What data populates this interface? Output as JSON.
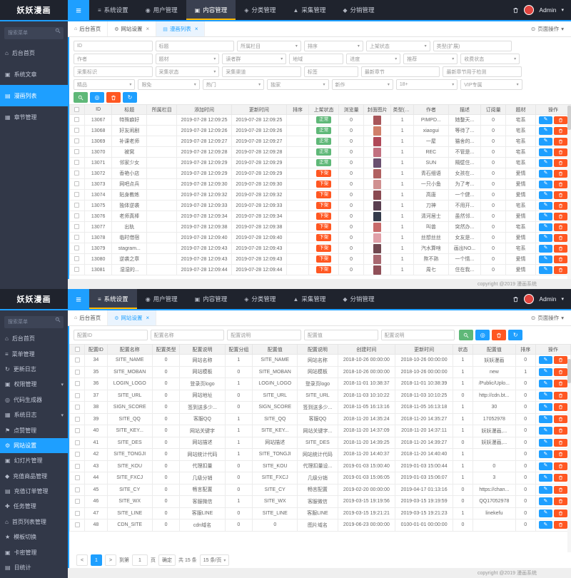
{
  "footer_text": "copyright @2019 漫画系统",
  "icons": {
    "hamburger": "≡",
    "caret": "▾",
    "close": "×",
    "circle_dot": "⊙",
    "home": "⌂",
    "gear": "⚙",
    "list": "▤",
    "grid": "▦",
    "doc": "▣",
    "diamond": "◆",
    "diamond_open": "◈",
    "triangle": "▲",
    "dot": "◉",
    "star": "★",
    "plus": "✚",
    "refresh": "↻",
    "pencil": "✎",
    "target": "◎",
    "menu": "≡",
    "flag": "⚑",
    "calendar": "▦",
    "card": "▣",
    "chart": "▤",
    "slide": "▣",
    "goods": "◆",
    "order": "▤",
    "task": "✚"
  },
  "p1": {
    "brand": "妖妖漫画",
    "nav": {
      "active": 2,
      "admin": "Admin",
      "items": [
        {
          "label": "系统设置",
          "icon": "menu"
        },
        {
          "label": "用户管理",
          "icon": "dot"
        },
        {
          "label": "内容管理",
          "icon": "doc"
        },
        {
          "label": "分类管理",
          "icon": "diamond_open"
        },
        {
          "label": "采集管理",
          "icon": "triangle"
        },
        {
          "label": "分销管理",
          "icon": "diamond"
        }
      ]
    },
    "sidebar": {
      "search_placeholder": "搜索菜单",
      "items": [
        {
          "label": "后台首页",
          "icon": "home"
        },
        {
          "label": "系统文章",
          "icon": "doc"
        },
        {
          "label": "漫画列表",
          "icon": "list",
          "active": true
        },
        {
          "label": "章节管理",
          "icon": "grid"
        }
      ]
    },
    "tabs": [
      {
        "label": "后台首页",
        "icon": "home"
      },
      {
        "label": "网站设置",
        "icon": "gear",
        "closable": true
      },
      {
        "label": "漫画列表",
        "icon": "list",
        "closable": true,
        "active": true
      }
    ],
    "page_action": "页面操作",
    "filters": [
      [
        {
          "label": "ID",
          "type": "input",
          "w": 16
        },
        {
          "label": "标题",
          "type": "input",
          "w": 16
        },
        {
          "label": "所属栏目",
          "type": "select",
          "w": 13
        },
        {
          "label": "排序",
          "type": "select",
          "w": 12
        },
        {
          "label": "上架状态",
          "type": "select",
          "w": 13
        },
        {
          "label": "类型(扩展)",
          "type": "input",
          "w": 16
        }
      ],
      [
        {
          "label": "作者",
          "type": "input",
          "w": 16
        },
        {
          "label": "题材",
          "type": "select",
          "w": 13
        },
        {
          "label": "读者群",
          "type": "select",
          "w": 13
        },
        {
          "label": "地域",
          "type": "input",
          "w": 11
        },
        {
          "label": "进度",
          "type": "select",
          "w": 11
        },
        {
          "label": "推荐",
          "type": "select",
          "w": 11
        },
        {
          "label": "收费状态",
          "type": "select",
          "w": 12
        }
      ],
      [
        {
          "label": "采集标识",
          "type": "input",
          "w": 16
        },
        {
          "label": "采集状态",
          "type": "select",
          "w": 13
        },
        {
          "label": "采集渠道",
          "type": "input",
          "w": 16
        },
        {
          "label": "标签",
          "type": "input",
          "w": 11
        },
        {
          "label": "最新章节",
          "type": "input",
          "w": 16
        },
        {
          "label": "最新章节用于检测",
          "type": "input",
          "w": 16
        }
      ],
      [
        {
          "label": "精品",
          "type": "select",
          "w": 12.5
        },
        {
          "label": "限免",
          "type": "select",
          "w": 12.5
        },
        {
          "label": "热门",
          "type": "select",
          "w": 12.5
        },
        {
          "label": "独家",
          "type": "select",
          "w": 12.5
        },
        {
          "label": "新作",
          "type": "select",
          "w": 12.5
        },
        {
          "label": "18+",
          "type": "select",
          "w": 12.5
        },
        {
          "label": "VIP专属",
          "type": "select",
          "w": 12.5
        }
      ]
    ],
    "toolbar": [
      {
        "icon": "search",
        "bg": "#5FB878",
        "name": "search"
      },
      {
        "icon": "target",
        "bg": "#1E9FFF",
        "name": "locate"
      },
      {
        "icon": "trash",
        "bg": "#FF5722",
        "name": "bulk-delete"
      },
      {
        "icon": "refresh",
        "bg": "#1E9FFF",
        "name": "refresh"
      }
    ],
    "columns": [
      "ID",
      "标题",
      "所属栏目",
      "添加时间",
      "更新时间",
      "排序",
      "上架状态",
      "浏览量",
      "封面图片",
      "类型(扩展)",
      "作者",
      "描述",
      "订阅量",
      "题材",
      "操作"
    ],
    "col_widths": [
      "3%",
      "5.5%",
      "7%",
      "6%",
      "11%",
      "11%",
      "4.5%",
      "6%",
      "5%",
      "5.5%",
      "4.5%",
      "7%",
      "6.5%",
      "5%",
      "6%",
      "7%"
    ],
    "cell_types": [
      "text",
      "text",
      "text",
      "text",
      "text",
      "text",
      "badge",
      "text",
      "cover",
      "text",
      "text",
      "text",
      "text",
      "text"
    ],
    "status_colors": {
      "正常": "#5FB878",
      "下架": "#FF5722"
    },
    "rows": [
      [
        13067,
        "特殊癖好",
        "",
        "2019-07-28 12:09:25",
        "2019-07-28 12:09:25",
        "",
        "正常",
        0,
        "#a8565a",
        1,
        "PIMPD...",
        "她整天...",
        0,
        "宅系"
      ],
      [
        13068,
        "好友闹剧",
        "",
        "2019-07-28 12:09:26",
        "2019-07-28 12:09:26",
        "",
        "正常",
        0,
        "#d07f6a",
        1,
        "xiaogui",
        "等待了...",
        0,
        "宅系"
      ],
      [
        13069,
        "补课老师",
        "",
        "2019-07-28 12:09:27",
        "2019-07-28 12:09:27",
        "",
        "正常",
        0,
        "#b04858",
        1,
        "一屋",
        "猫舍的...",
        0,
        "宅系"
      ],
      [
        13070,
        "被窝",
        "",
        "2019-07-28 12:09:28",
        "2019-07-28 12:09:28",
        "",
        "正常",
        0,
        "#c27080",
        1,
        "REC",
        "不管是...",
        0,
        "宅系"
      ],
      [
        13071,
        "邻家少女",
        "",
        "2019-07-28 12:09:29",
        "2019-07-28 12:09:29",
        "",
        "正常",
        0,
        "#6a5070",
        1,
        "SUN",
        "隔壁住...",
        0,
        "宅系"
      ],
      [
        13072,
        "香艳小店",
        "",
        "2019-07-28 12:09:29",
        "2019-07-28 12:09:29",
        "",
        "下架",
        0,
        "#b06060",
        1,
        "青石细语",
        "女孩在...",
        0,
        "爱情"
      ],
      [
        13073,
        "网吧点兵",
        "",
        "2019-07-28 12:09:30",
        "2019-07-28 12:09:30",
        "",
        "下架",
        0,
        "#d09090",
        1,
        "一只小鱼",
        "为了考...",
        0,
        "爱情"
      ],
      [
        13074,
        "贴身教练",
        "",
        "2019-07-28 12:09:32",
        "2019-07-28 12:09:32",
        "",
        "下架",
        0,
        "#8a4a52",
        1,
        "高唐",
        "一个健...",
        0,
        "爱情"
      ],
      [
        13075,
        "独体逆袭",
        "",
        "2019-07-28 12:09:33",
        "2019-07-28 12:09:33",
        "",
        "下架",
        0,
        "#5a3f50",
        1,
        "刀神",
        "不用开...",
        0,
        "宅系"
      ],
      [
        13076,
        "老师真棒",
        "",
        "2019-07-28 12:09:34",
        "2019-07-28 12:09:34",
        "",
        "下架",
        0,
        "#343a4a",
        1,
        "清河居士",
        "虽然邻...",
        0,
        "爱情"
      ],
      [
        13077,
        "出轨",
        "",
        "2019-07-28 12:09:38",
        "2019-07-28 12:09:38",
        "",
        "下架",
        0,
        "#c86a6a",
        1,
        "叫兽",
        "突然办...",
        0,
        "宅系"
      ],
      [
        13078,
        "临时借宿",
        "",
        "2019-07-28 12:09:40",
        "2019-07-28 12:09:40",
        "",
        "下架",
        0,
        "#e0a0a8",
        1,
        "丝想丝丝",
        "女友是...",
        0,
        "爱情"
      ],
      [
        13079,
        "stagram...",
        "",
        "2019-07-28 12:09:43",
        "2019-07-28 12:09:43",
        "",
        "下架",
        0,
        "#704850",
        1,
        "汽水算啥",
        "画出NO...",
        0,
        "宅系"
      ],
      [
        13080,
        "逆袭之章",
        "",
        "2019-07-28 12:09:43",
        "2019-07-28 12:09:43",
        "",
        "下架",
        0,
        "#a86870",
        1,
        "熬不熟",
        "一个情...",
        0,
        "爱情"
      ],
      [
        13081,
        "湿湿的...",
        "",
        "2019-07-28 12:09:44",
        "2019-07-28 12:09:44",
        "",
        "下架",
        0,
        "#905058",
        1,
        "周七",
        "住在我...",
        0,
        "爱情"
      ]
    ]
  },
  "p2": {
    "brand": "妖妖漫画",
    "nav": {
      "active": 0,
      "admin": "Admin",
      "items": [
        {
          "label": "系统设置",
          "icon": "menu"
        },
        {
          "label": "用户管理",
          "icon": "dot"
        },
        {
          "label": "内容管理",
          "icon": "doc"
        },
        {
          "label": "分类管理",
          "icon": "diamond_open"
        },
        {
          "label": "采集管理",
          "icon": "triangle"
        },
        {
          "label": "分销管理",
          "icon": "diamond"
        }
      ]
    },
    "sidebar": {
      "search_placeholder": "搜索菜单",
      "items": [
        {
          "label": "后台首页",
          "icon": "home"
        },
        {
          "label": "菜单管理",
          "icon": "menu"
        },
        {
          "label": "更新日志",
          "icon": "refresh"
        },
        {
          "label": "权限管理",
          "icon": "doc",
          "expand": true
        },
        {
          "label": "代码生成器",
          "icon": "target"
        },
        {
          "label": "系统日志",
          "icon": "calendar",
          "expand": true
        },
        {
          "label": "点赞管理",
          "icon": "flag"
        },
        {
          "label": "网站设置",
          "icon": "gear",
          "active": true
        },
        {
          "label": "幻灯片管理",
          "icon": "slide"
        },
        {
          "label": "充值商品管理",
          "icon": "goods"
        },
        {
          "label": "充值订单管理",
          "icon": "order"
        },
        {
          "label": "任务管理",
          "icon": "task"
        },
        {
          "label": "首页列表管理",
          "icon": "home"
        },
        {
          "label": "模板切换",
          "icon": "star"
        },
        {
          "label": "卡密管理",
          "icon": "card"
        },
        {
          "label": "日统计",
          "icon": "chart"
        }
      ]
    },
    "tabs": [
      {
        "label": "后台首页",
        "icon": "home"
      },
      {
        "label": "网站设置",
        "icon": "gear",
        "closable": true,
        "active": true
      }
    ],
    "page_action": "页面操作",
    "filters": [
      [
        {
          "label": "配置ID",
          "type": "input",
          "w": 15
        },
        {
          "label": "配置名称",
          "type": "input",
          "w": 15
        },
        {
          "label": "配置说明",
          "type": "input",
          "w": 15
        },
        {
          "label": "配置值",
          "type": "input",
          "w": 15
        },
        {
          "label": "配置说明",
          "type": "input",
          "w": 15
        }
      ]
    ],
    "toolbar_inline": true,
    "toolbar": [
      {
        "icon": "search",
        "bg": "#5FB878",
        "name": "search"
      },
      {
        "icon": "target",
        "bg": "#1E9FFF",
        "name": "locate"
      },
      {
        "icon": "trash",
        "bg": "#FF5722",
        "name": "bulk-delete"
      },
      {
        "icon": "refresh",
        "bg": "#1E9FFF",
        "name": "refresh"
      }
    ],
    "columns": [
      "配置ID",
      "配置名称",
      "配置类型",
      "配置说明",
      "配置分组",
      "配置值",
      "配置说明",
      "创建时间",
      "更新时间",
      "状态",
      "配置值",
      "排序",
      "操作"
    ],
    "col_widths": [
      "3%",
      "4.5%",
      "9%",
      "5.5%",
      "9%",
      "5.5%",
      "9%",
      "8%",
      "11.5%",
      "11.5%",
      "4%",
      "8.5%",
      "4%",
      "7%"
    ],
    "cell_types": [
      "text",
      "text",
      "text",
      "text",
      "text",
      "text",
      "text",
      "text",
      "text",
      "text",
      "text",
      "text"
    ],
    "status_colors": {},
    "rows": [
      [
        34,
        "SITE_NAME",
        0,
        "网站名称",
        1,
        "SITE_NAME",
        "网站名称",
        "2018-10-26 00:00:00",
        "2018-10-26 00:00:00",
        1,
        "妖妖漫画",
        0
      ],
      [
        35,
        "SITE_MOBAN",
        0,
        "网站模板",
        0,
        "SITE_MOBAN",
        "网站模板",
        "2018-10-26 00:00:00",
        "2018-10-26 00:00:00",
        1,
        "new",
        1
      ],
      [
        36,
        "LOGIN_LOGO",
        0,
        "登录页logo",
        1,
        "LOGIN_LOGO",
        "登录页logo",
        "2018-11-01 10:38:37",
        "2018-11-01 10:38:39",
        1,
        "/Public/Uplo...",
        0
      ],
      [
        37,
        "SITE_URL",
        0,
        "网站地址",
        0,
        "SITE_URL",
        "SITE_URL",
        "2018-11-03 10:10:22",
        "2018-11-03 10:10:25",
        0,
        "http://cdn.bt...",
        0
      ],
      [
        38,
        "SIGN_SCORE",
        0,
        "签到送多少...",
        0,
        "SIGN_SCORE",
        "签到送多少...",
        "2018-11-05 16:13:16",
        "2018-11-05 16:13:18",
        1,
        "30",
        0
      ],
      [
        39,
        "SITE_QQ",
        0,
        "客服QQ",
        1,
        "SITE_QQ",
        "客服QQ",
        "2018-11-20 14:35:24",
        "2018-11-20 14:35:27",
        1,
        "17052978",
        0
      ],
      [
        40,
        "SITE_KEY...",
        0,
        "网站关键字",
        1,
        "SITE_KEY...",
        "网站关键字...",
        "2018-11-20 14:37:09",
        "2018-11-20 14:37:11",
        1,
        "妖妖漫画,...",
        0
      ],
      [
        41,
        "SITE_DES",
        0,
        "网站描述",
        1,
        "网站描述",
        "SITE_DES",
        "2018-11-20 14:39:25",
        "2018-11-20 14:39:27",
        0,
        "妖妖漫画,...",
        0
      ],
      [
        42,
        "SITE_TONGJI",
        0,
        "网站统计代码",
        1,
        "SITE_TONGJI",
        "网站统计代码",
        "2018-11-20 14:40:37",
        "2018-11-20 14:40:40",
        1,
        "",
        0
      ],
      [
        43,
        "SITE_KOU",
        0,
        "代理扣量",
        0,
        "SITE_KOU",
        "代理扣量设...",
        "2019-01-03 15:00:40",
        "2019-01-03 15:00:44",
        1,
        "0",
        0
      ],
      [
        44,
        "SITE_FXCJ",
        0,
        "几级分销",
        0,
        "SITE_FXCJ",
        "几级分销",
        "2019-01-03 15:06:05",
        "2019-01-03 15:06:07",
        1,
        "3",
        0
      ],
      [
        45,
        "SITE_CY",
        0,
        "畅言配置",
        0,
        "SITE_CY",
        "畅言配置",
        "2019-02-20 00:00:00",
        "2019-04-17 01:13:16",
        0,
        "https://chan...",
        0
      ],
      [
        46,
        "SITE_WX",
        0,
        "客服微信",
        1,
        "SITE_WX",
        "客服微信",
        "2019-03-15 19:19:56",
        "2019-03-15 19:19:59",
        0,
        "QQ17052978",
        0
      ],
      [
        47,
        "SITE_LINE",
        0,
        "客服LINE",
        0,
        "SITE_LINE",
        "客服LINE",
        "2019-03-15 19:21:21",
        "2019-03-15 19:21:23",
        1,
        "linekefu",
        0
      ],
      [
        48,
        "CDN_SITE",
        0,
        "cdn域名",
        0,
        "0",
        "图片域名",
        "2019-06-23 00:00:00",
        "0100-01-01 00:00:00",
        0,
        "",
        0
      ]
    ],
    "pager": {
      "prev": "<",
      "page": "1",
      "next": ">",
      "goto_label": "到第",
      "goto_value": "1",
      "goto_unit": "页",
      "confirm": "确定",
      "total": "共 15 条",
      "per_page": "15 条/页"
    }
  }
}
